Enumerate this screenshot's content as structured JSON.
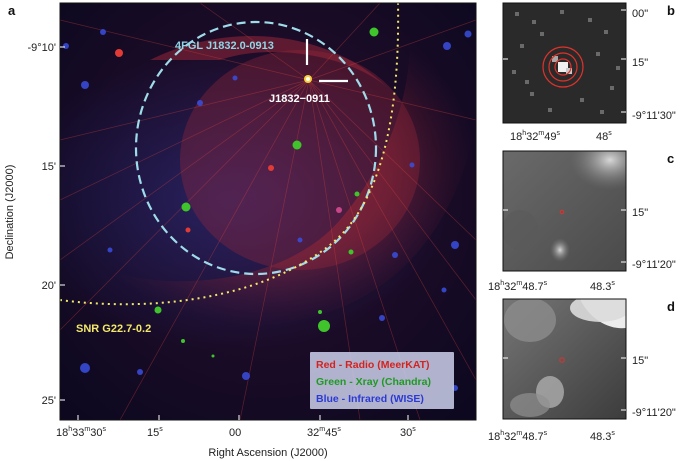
{
  "colors": {
    "radio_red": "#e0322c",
    "xray_green": "#3fc52b",
    "infrared_blue": "#2a3fd0",
    "fermi_ellipse": "#9fdcea",
    "snr_yellow": "#f2e86a",
    "source_label": "#8fd7e6"
  },
  "panels": {
    "a": {
      "letter": "a",
      "fermi_label": "4FGL J1832.0-0913",
      "source_label": "J1832−0911",
      "snr_label": "SNR G22.7-0.2",
      "legend": {
        "radio": "Red - Radio (MeerKAT)",
        "xray": "Green - Xray (Chandra)",
        "infrared": "Blue - Infrared (WISE)"
      },
      "y_ticks": [
        "-9°10'",
        "15'",
        "20'",
        "25'"
      ],
      "x_ticks": [
        {
          "h": "18",
          "m": "33",
          "s": "30"
        },
        {
          "s": "15"
        },
        {
          "s": "00"
        },
        {
          "m": "32",
          "s": "45"
        },
        {
          "s": "30"
        }
      ],
      "xlabel": "Right Ascension (J2000)",
      "ylabel": "Declination (J2000)"
    },
    "b": {
      "letter": "b",
      "y_ticks": [
        "00\"",
        "15\"",
        "-9°11'30\""
      ],
      "x_ticks": [
        {
          "h": "18",
          "m": "32",
          "s": "49"
        },
        {
          "s": "48"
        }
      ]
    },
    "c": {
      "letter": "c",
      "y_ticks": [
        "15\"",
        "-9°11'20\""
      ],
      "x_ticks": [
        {
          "h": "18",
          "m": "32",
          "s": "48.7"
        },
        {
          "s": "48.3"
        }
      ]
    },
    "d": {
      "letter": "d",
      "y_ticks": [
        "15\"",
        "-9°11'20\""
      ],
      "x_ticks": [
        {
          "h": "18",
          "m": "32",
          "s": "48.7"
        },
        {
          "s": "48.3"
        }
      ]
    }
  }
}
